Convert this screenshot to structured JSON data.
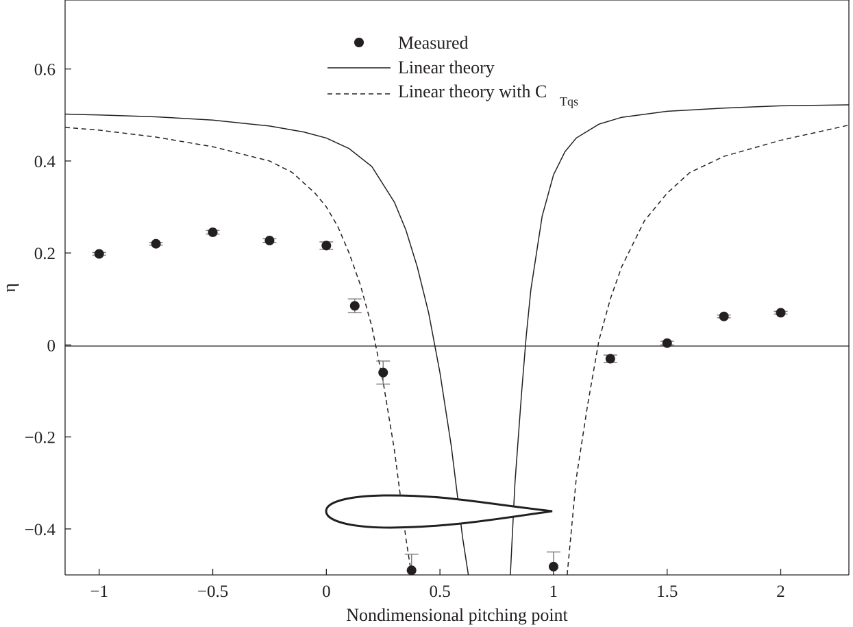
{
  "chart_data": {
    "type": "scatter",
    "xlabel": "Nondimensional pitching point",
    "ylabel": "η",
    "xlim": [
      -1.15,
      2.3
    ],
    "ylim": [
      -0.5,
      0.75
    ],
    "xticks": [
      -1,
      -0.5,
      0,
      0.5,
      1,
      1.5,
      2
    ],
    "xtick_labels": [
      "−1",
      "−0.5",
      "0",
      "0.5",
      "1",
      "1.5",
      "2"
    ],
    "yticks": [
      -0.4,
      -0.2,
      0,
      0.2,
      0.4,
      0.6
    ],
    "ytick_labels": [
      "−0.4",
      "−0.2",
      "0",
      "0.2",
      "0.4",
      "0.6"
    ],
    "grid": false,
    "legend_position": "top-center",
    "legend": {
      "measured": "Measured",
      "linear": "Linear theory",
      "ctqs_main": "Linear theory with C",
      "ctqs_sub": "Tqs"
    },
    "series": [
      {
        "name": "Measured",
        "style": "markers-with-errorbars",
        "x": [
          -1,
          -0.75,
          -0.5,
          -0.25,
          0,
          0.125,
          0.25,
          0.375,
          1,
          1.25,
          1.5,
          1.75,
          2
        ],
        "y": [
          0.198,
          0.22,
          0.245,
          0.227,
          0.216,
          0.085,
          -0.06,
          -0.49,
          -0.482,
          -0.03,
          0.004,
          0.062,
          0.07
        ],
        "err_low": [
          0.003,
          0.003,
          0.004,
          0.004,
          0.008,
          0.015,
          0.025,
          0.0,
          0.0,
          0.008,
          0.004,
          0.003,
          0.003
        ],
        "err_high": [
          0.003,
          0.003,
          0.004,
          0.004,
          0.008,
          0.015,
          0.025,
          0.035,
          0.032,
          0.008,
          0.004,
          0.003,
          0.003
        ]
      },
      {
        "name": "Linear theory",
        "style": "solid",
        "branches": [
          {
            "x": [
              -1.15,
              -1.0,
              -0.75,
              -0.5,
              -0.25,
              -0.1,
              0.0,
              0.1,
              0.2,
              0.3,
              0.35,
              0.4,
              0.45,
              0.5,
              0.55,
              0.6,
              0.625
            ],
            "y": [
              0.502,
              0.5,
              0.496,
              0.489,
              0.476,
              0.463,
              0.45,
              0.427,
              0.388,
              0.31,
              0.25,
              0.17,
              0.07,
              -0.06,
              -0.22,
              -0.42,
              -0.5
            ]
          },
          {
            "x": [
              0.81,
              0.83,
              0.86,
              0.88,
              0.9,
              0.95,
              1.0,
              1.05,
              1.1,
              1.2,
              1.3,
              1.5,
              1.75,
              2.0,
              2.3
            ],
            "y": [
              -0.5,
              -0.3,
              -0.1,
              0.02,
              0.12,
              0.28,
              0.37,
              0.42,
              0.45,
              0.48,
              0.495,
              0.508,
              0.515,
              0.52,
              0.522
            ]
          }
        ]
      },
      {
        "name": "Linear theory with C_Tqs",
        "style": "dashed",
        "branches": [
          {
            "x": [
              -1.15,
              -1.0,
              -0.75,
              -0.5,
              -0.25,
              -0.15,
              -0.05,
              0.0,
              0.05,
              0.1,
              0.15,
              0.2,
              0.25,
              0.3,
              0.35,
              0.375
            ],
            "y": [
              0.473,
              0.467,
              0.452,
              0.431,
              0.4,
              0.375,
              0.33,
              0.3,
              0.258,
              0.2,
              0.13,
              0.04,
              -0.08,
              -0.23,
              -0.42,
              -0.5
            ]
          },
          {
            "x": [
              1.06,
              1.1,
              1.15,
              1.2,
              1.25,
              1.3,
              1.4,
              1.5,
              1.6,
              1.75,
              2.0,
              2.3
            ],
            "y": [
              -0.5,
              -0.29,
              -0.13,
              0.01,
              0.1,
              0.17,
              0.27,
              0.33,
              0.375,
              0.41,
              0.445,
              0.478
            ]
          }
        ]
      }
    ]
  }
}
